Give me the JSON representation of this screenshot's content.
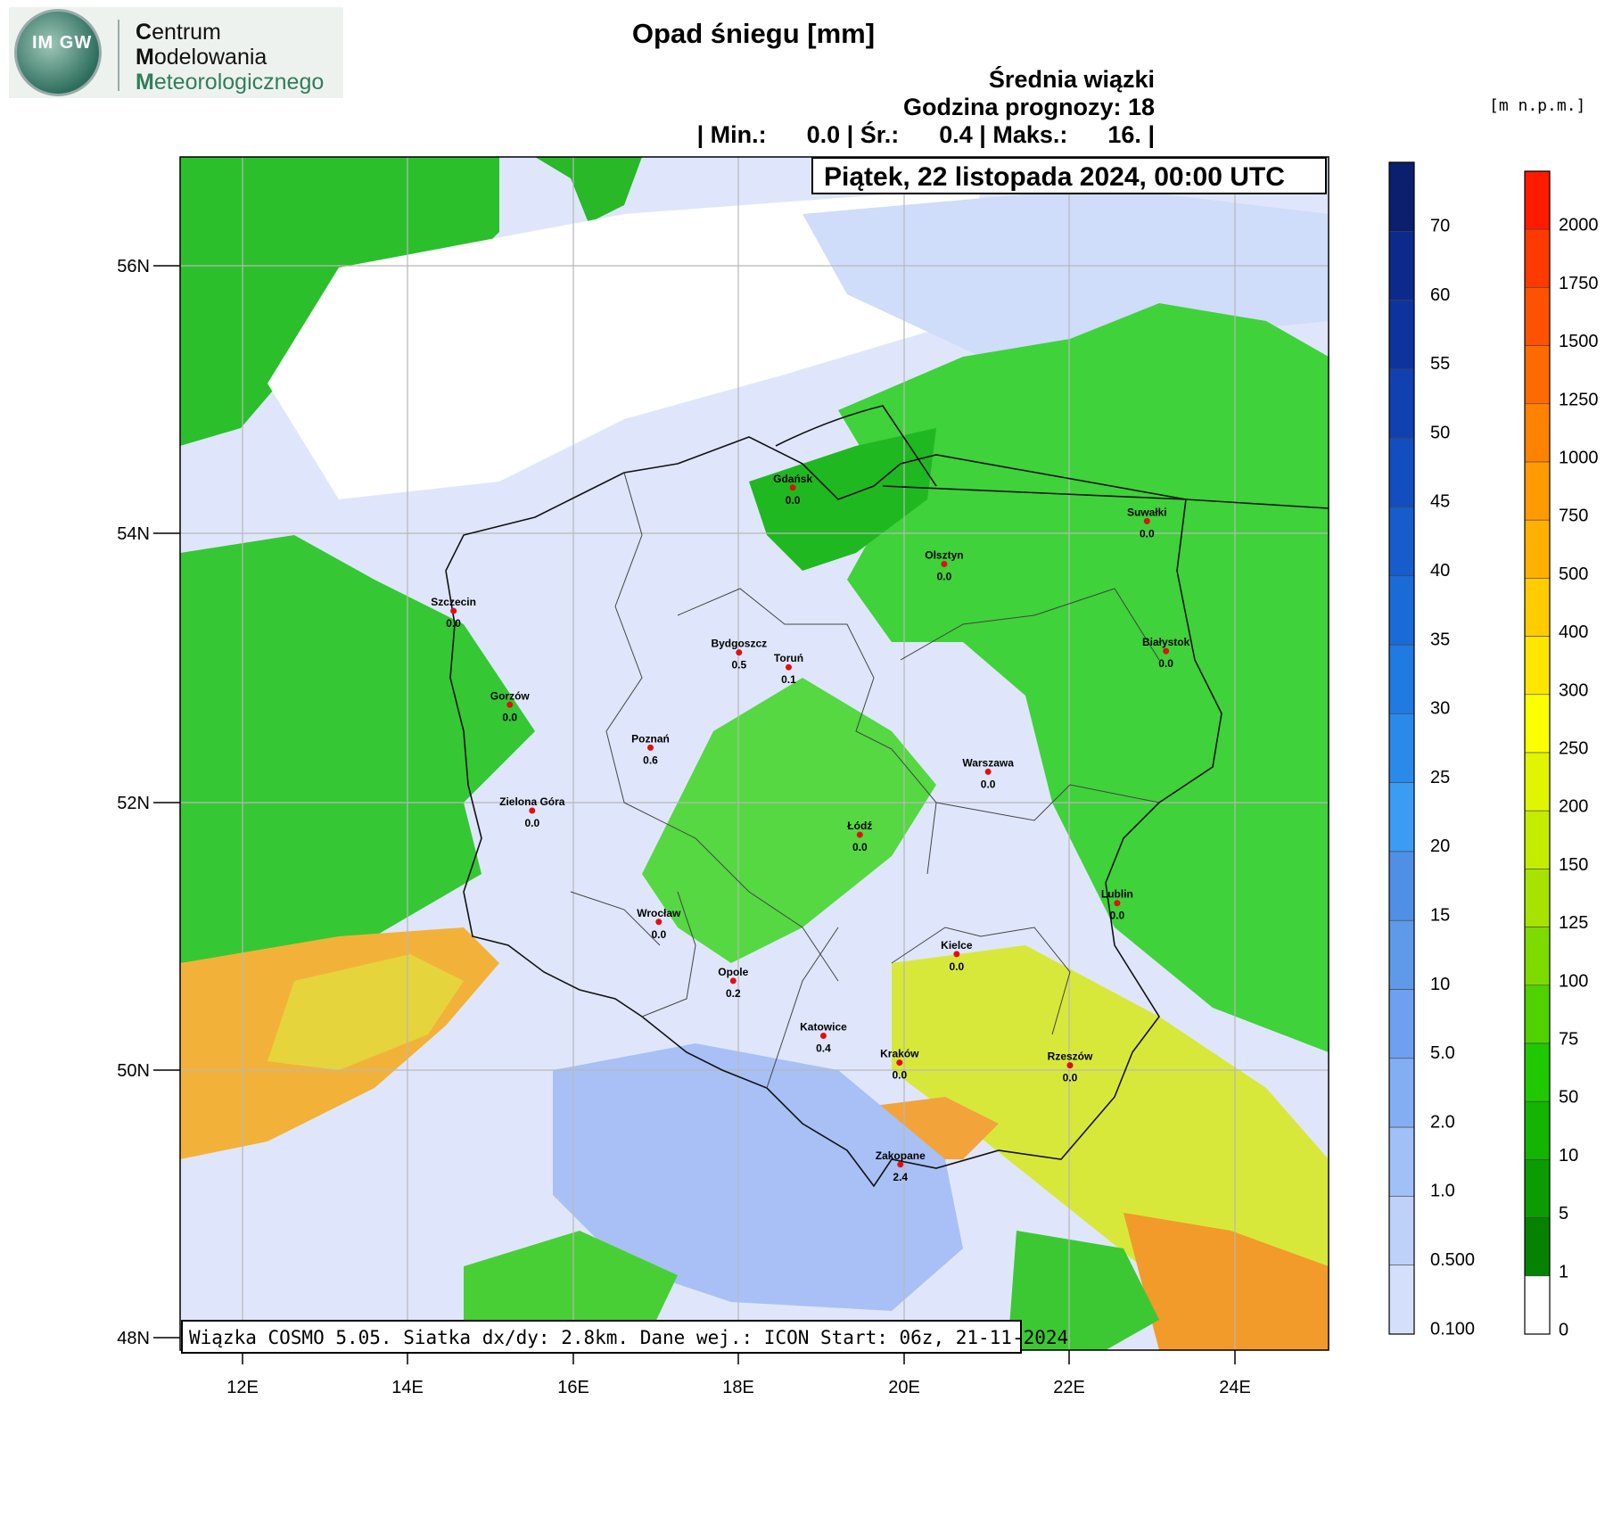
{
  "header": {
    "logo_text": "IM GW",
    "org_lines": [
      {
        "initial": "C",
        "rest": "entrum"
      },
      {
        "initial": "M",
        "rest": "odelowania"
      },
      {
        "initial": "M",
        "rest": "eteorologicznego"
      }
    ],
    "title": "Opad śniegu [mm]",
    "subtitle_1": "Średnia wiązki",
    "subtitle_2": "Godzina prognozy: 18",
    "subtitle_3": "| Min.:      0.0 | Śr.:      0.4 | Maks.:      16. |",
    "date": "Piątek, 22 listopada 2024, 00:00 UTC",
    "unit_label": "[m  n.p.m.]"
  },
  "footer_info": "Wiązka COSMO 5.05. Siatka dx/dy: 2.8km. Dane wej.: ICON Start: 06z, 21-11-2024",
  "map": {
    "lat_labels": [
      "56N",
      "54N",
      "52N",
      "50N",
      "48N"
    ],
    "lon_labels": [
      "12E",
      "14E",
      "16E",
      "18E",
      "20E",
      "22E",
      "24E"
    ],
    "cities": [
      {
        "name": "Gdańsk",
        "value": "0.0",
        "lon": 18.65,
        "lat": 54.35
      },
      {
        "name": "Suwałki",
        "value": "0.0",
        "lon": 22.93,
        "lat": 54.1
      },
      {
        "name": "Olsztyn",
        "value": "0.0",
        "lon": 20.48,
        "lat": 53.78
      },
      {
        "name": "Szczecin",
        "value": "0.0",
        "lon": 14.55,
        "lat": 53.43
      },
      {
        "name": "Bydgoszcz",
        "value": "0.5",
        "lon": 18.0,
        "lat": 53.12
      },
      {
        "name": "Toruń",
        "value": "0.1",
        "lon": 18.6,
        "lat": 53.01
      },
      {
        "name": "Białystok",
        "value": "0.0",
        "lon": 23.16,
        "lat": 53.13
      },
      {
        "name": "Gorzów",
        "value": "0.0",
        "lon": 15.23,
        "lat": 52.73
      },
      {
        "name": "Poznań",
        "value": "0.6",
        "lon": 16.93,
        "lat": 52.41
      },
      {
        "name": "Warszawa",
        "value": "0.0",
        "lon": 21.01,
        "lat": 52.23
      },
      {
        "name": "Zielona Góra",
        "value": "0.0",
        "lon": 15.5,
        "lat": 51.94
      },
      {
        "name": "Łódź",
        "value": "0.0",
        "lon": 19.46,
        "lat": 51.76
      },
      {
        "name": "Lublin",
        "value": "0.0",
        "lon": 22.57,
        "lat": 51.25
      },
      {
        "name": "Wrocław",
        "value": "0.0",
        "lon": 17.03,
        "lat": 51.11
      },
      {
        "name": "Kielce",
        "value": "0.0",
        "lon": 20.63,
        "lat": 50.87
      },
      {
        "name": "Opole",
        "value": "0.2",
        "lon": 17.93,
        "lat": 50.67
      },
      {
        "name": "Katowice",
        "value": "0.4",
        "lon": 19.02,
        "lat": 50.26
      },
      {
        "name": "Kraków",
        "value": "0.0",
        "lon": 19.94,
        "lat": 50.06
      },
      {
        "name": "Rzeszów",
        "value": "0.0",
        "lon": 22.0,
        "lat": 50.04
      },
      {
        "name": "Zakopane",
        "value": "2.4",
        "lon": 19.95,
        "lat": 49.3
      }
    ]
  },
  "colorbar_snow": {
    "labels": [
      "70",
      "60",
      "55",
      "50",
      "45",
      "40",
      "35",
      "30",
      "25",
      "20",
      "15",
      "10",
      "5.0",
      "2.0",
      "1.0",
      "0.500",
      "0.100"
    ],
    "colors": [
      "#0a1f6e",
      "#0c2a8c",
      "#0e339f",
      "#1140b0",
      "#134ec0",
      "#165ccc",
      "#1a6bd8",
      "#1f7ae2",
      "#2a8aea",
      "#3a9cf2",
      "#4f8fe6",
      "#5e99ea",
      "#6f9ff0",
      "#83aef4",
      "#a0c0f7",
      "#bdd1f9",
      "#d4e0fb"
    ]
  },
  "colorbar_elev": {
    "labels": [
      "2000",
      "1750",
      "1500",
      "1250",
      "1000",
      "750",
      "500",
      "400",
      "300",
      "250",
      "200",
      "150",
      "125",
      "100",
      "75",
      "50",
      "10",
      "5",
      "1",
      "0"
    ],
    "colors": [
      "#ff1a00",
      "#ff3a00",
      "#ff5200",
      "#ff6a00",
      "#ff8200",
      "#ff9a00",
      "#ffb000",
      "#ffcc00",
      "#ffe600",
      "#fbff00",
      "#e0f500",
      "#c4ec00",
      "#a6e400",
      "#7ddb00",
      "#4fd200",
      "#20c800",
      "#12b500",
      "#0a9c00",
      "#058300",
      "#ffffff"
    ]
  }
}
